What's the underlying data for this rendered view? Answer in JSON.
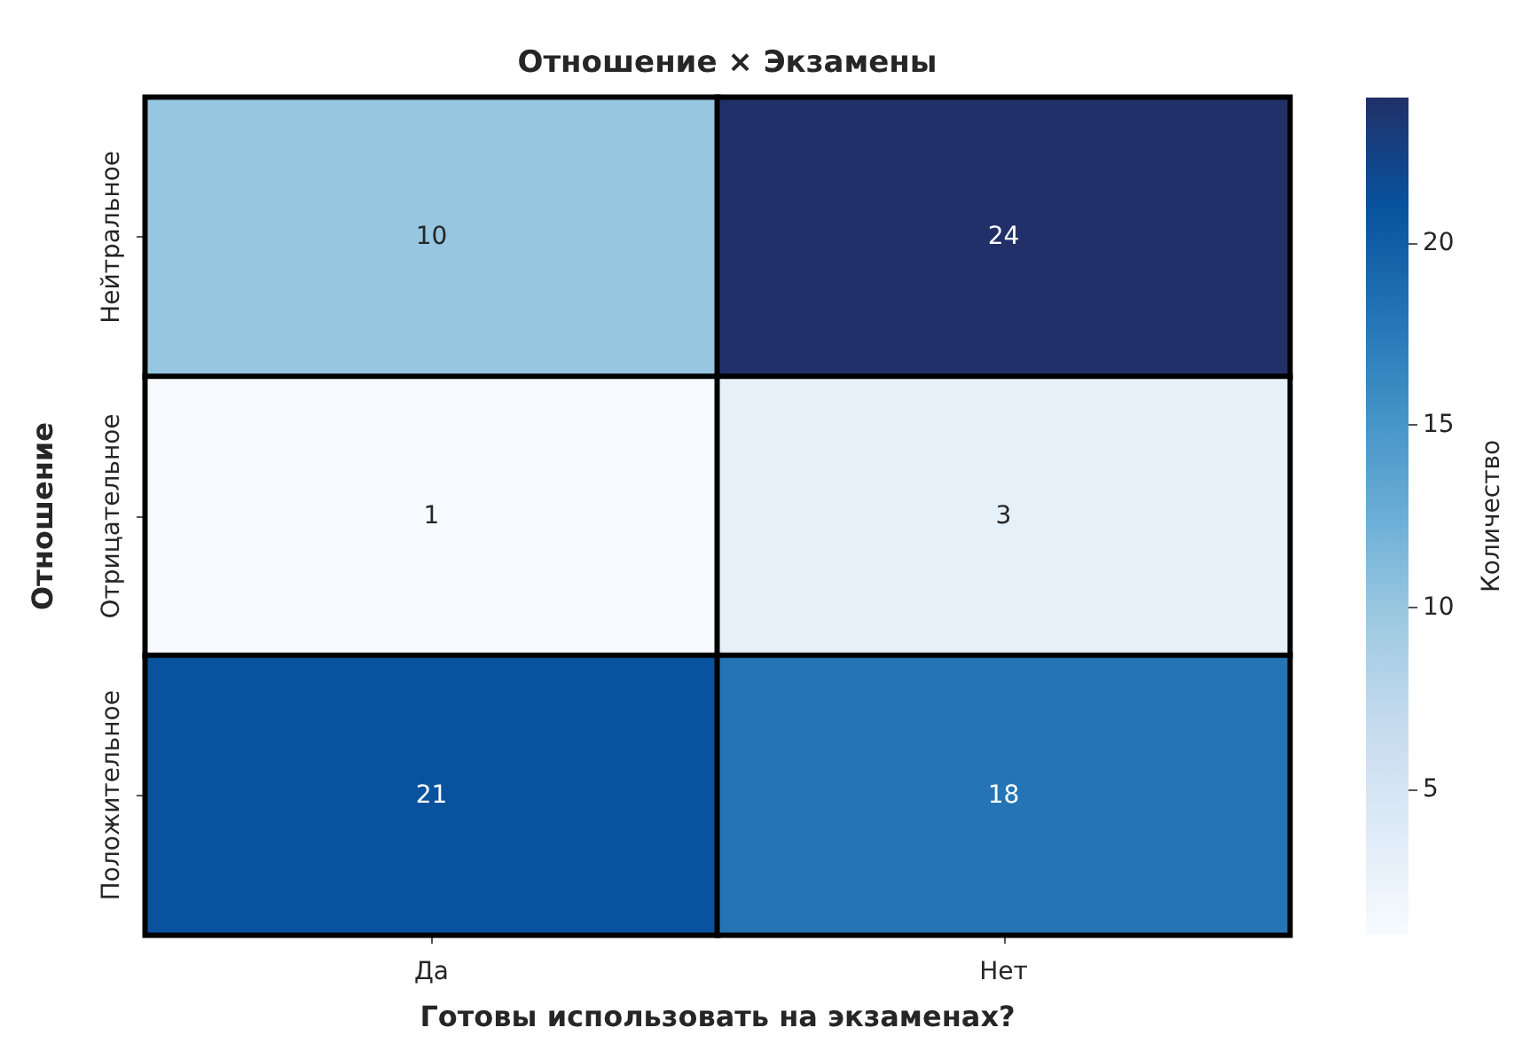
{
  "chart_data": {
    "type": "heatmap",
    "title": "Отношение × Экзамены",
    "xlabel": "Готовы использовать на экзаменах?",
    "ylabel": "Отношение",
    "clabel": "Количество",
    "categories": [
      "Да",
      "Нет"
    ],
    "y_categories": [
      "Нейтральное",
      "Отрицательное",
      "Положительное"
    ],
    "cells": [
      [
        10,
        24
      ],
      [
        1,
        3
      ],
      [
        21,
        18
      ]
    ],
    "data_labels": true,
    "clim": [
      1,
      24
    ],
    "cticks": [
      5,
      10,
      15,
      20
    ]
  }
}
